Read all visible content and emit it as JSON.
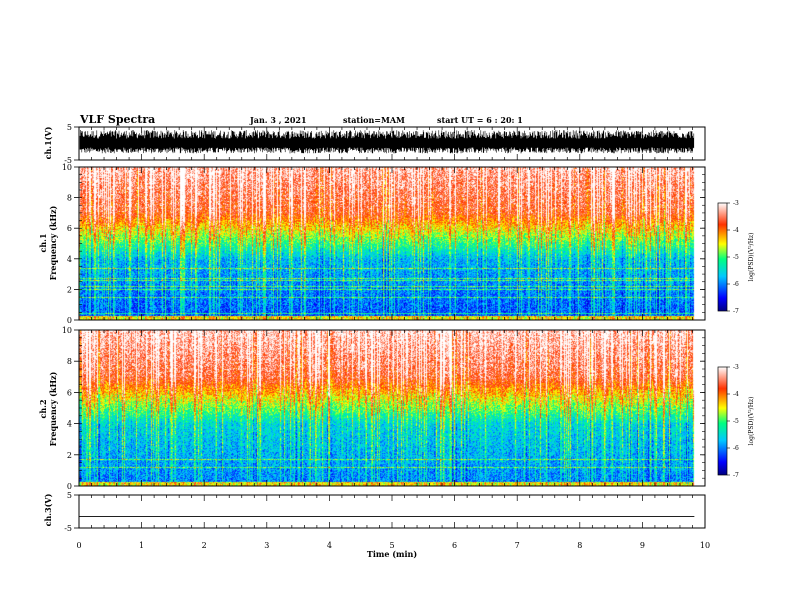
{
  "header": {
    "title": "VLF Spectra",
    "date": "Jan. 3 , 2021",
    "station": "station=MAM",
    "start_time": "start UT = 6 : 20: 1"
  },
  "colorbar": {
    "label": "log(PSD)(V²/Hz)",
    "ticks": [
      "-3",
      "-4",
      "-5",
      "-6",
      "-7"
    ]
  },
  "chart_data": [
    {
      "type": "line",
      "title": "",
      "ylabel": "ch.1(V)",
      "ylim": [
        -5,
        5
      ],
      "yticks": [
        "5",
        "-5"
      ],
      "x": [
        0,
        9.83
      ],
      "note_values": "dense noisy waveform filling roughly -3 to +4 V"
    },
    {
      "type": "heatmap",
      "ylabel_top": "ch.1",
      "ylabel": "Frequency (kHz)",
      "ylim": [
        0,
        10
      ],
      "yticks": [
        "0",
        "2",
        "4",
        "6",
        "8",
        "10"
      ],
      "xlim": [
        0,
        10
      ],
      "data_end_min": 9.83,
      "color_scale": {
        "min": -7,
        "max": -3,
        "colors": [
          "#000080",
          "#0000ff",
          "#00c8ff",
          "#00ff80",
          "#ffff00",
          "#ff3300",
          "#ffffff"
        ]
      },
      "low_band_level": -6.2,
      "high_band_level": -3.3
    },
    {
      "type": "heatmap",
      "ylabel_top": "ch.2",
      "ylabel": "Frequency (kHz)",
      "ylim": [
        0,
        10
      ],
      "yticks": [
        "0",
        "2",
        "4",
        "6",
        "8",
        "10"
      ],
      "xlim": [
        0,
        10
      ],
      "data_end_min": 9.83,
      "color_scale": {
        "min": -7,
        "max": -3,
        "colors": [
          "#000080",
          "#0000ff",
          "#00c8ff",
          "#00ff80",
          "#ffff00",
          "#ff3300",
          "#ffffff"
        ]
      },
      "low_band_level": -6.0,
      "high_band_level": -3.2
    },
    {
      "type": "line",
      "ylabel": "ch.3(V)",
      "ylim": [
        -5,
        5
      ],
      "yticks": [
        "5",
        "-5"
      ],
      "x": [
        0,
        9.83
      ],
      "y": [
        -1.5,
        -1.5
      ]
    }
  ],
  "xaxis": {
    "label": "Time (min)",
    "ticks": [
      "0",
      "1",
      "2",
      "3",
      "4",
      "5",
      "6",
      "7",
      "8",
      "9",
      "10"
    ],
    "range": [
      0,
      10
    ]
  }
}
